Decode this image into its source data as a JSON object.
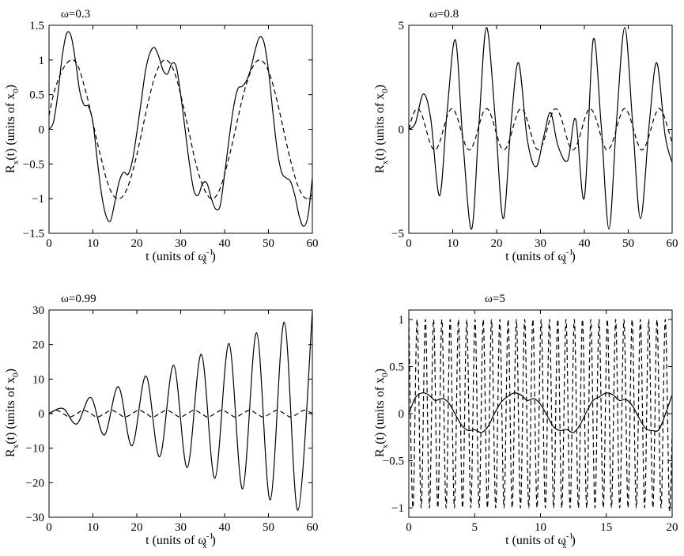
{
  "chart_data": [
    {
      "type": "line",
      "title": "ω=0.3",
      "xlabel": "t (units of ω_x^{-1})",
      "ylabel": "R_x(t) (units of x_0)",
      "xlim": [
        0,
        60
      ],
      "ylim": [
        -1.5,
        1.5
      ],
      "xticks": [
        0,
        10,
        20,
        30,
        40,
        50,
        60
      ],
      "yticks": [
        -1.5,
        -1,
        -0.5,
        0,
        0.5,
        1,
        1.5
      ],
      "xtick_labels": [
        "0",
        "10",
        "20",
        "30",
        "40",
        "50",
        "60"
      ],
      "ytick_labels": [
        "−1.5",
        "−1",
        "−0.5",
        "0",
        "0.5",
        "1",
        "1.5"
      ],
      "series": [
        {
          "style": "solid",
          "x": [
            0,
            1,
            2,
            3,
            4,
            5,
            6,
            7,
            8,
            9,
            10,
            11,
            12,
            13,
            14,
            15,
            16,
            17,
            18,
            19,
            20,
            21,
            22,
            23,
            24,
            25,
            26,
            27,
            28,
            29,
            30,
            31,
            32,
            33,
            34,
            35,
            36,
            37,
            38,
            39,
            40,
            41,
            42,
            43,
            44,
            45,
            46,
            47,
            48,
            49,
            50,
            51,
            52,
            53,
            54,
            55,
            56,
            57,
            58,
            59,
            60
          ],
          "y": [
            0,
            0.1,
            0.5,
            1.05,
            1.38,
            1.35,
            1.0,
            0.55,
            0.35,
            0.33,
            0.1,
            -0.45,
            -0.95,
            -1.25,
            -1.32,
            -1.05,
            -0.75,
            -0.62,
            -0.65,
            -0.45,
            -0.05,
            0.4,
            0.85,
            1.1,
            1.18,
            1.05,
            0.85,
            0.8,
            0.95,
            0.9,
            0.5,
            0.0,
            -0.5,
            -0.88,
            -0.95,
            -0.78,
            -0.78,
            -1.0,
            -1.15,
            -1.1,
            -0.65,
            -0.15,
            0.3,
            0.58,
            0.62,
            0.7,
            0.88,
            1.15,
            1.33,
            1.25,
            0.85,
            0.25,
            -0.3,
            -0.62,
            -0.7,
            -0.75,
            -0.95,
            -1.25,
            -1.4,
            -1.25,
            -0.7
          ]
        },
        {
          "style": "dashed",
          "x": [
            0,
            1,
            2,
            3,
            4,
            5,
            6,
            7,
            8,
            9,
            10,
            11,
            12,
            13,
            14,
            15,
            16,
            17,
            18,
            19,
            20,
            21,
            22,
            23,
            24,
            25,
            26,
            27,
            28,
            29,
            30,
            31,
            32,
            33,
            34,
            35,
            36,
            37,
            38,
            39,
            40,
            41,
            42,
            43,
            44,
            45,
            46,
            47,
            48,
            49,
            50,
            51,
            52,
            53,
            54,
            55,
            56,
            57,
            58,
            59,
            60
          ],
          "y": [
            0.2,
            0.5,
            0.7,
            0.85,
            0.95,
            1.0,
            0.98,
            0.85,
            0.63,
            0.39,
            0.1,
            -0.19,
            -0.45,
            -0.7,
            -0.88,
            -0.98,
            -1.0,
            -0.95,
            -0.82,
            -0.62,
            -0.37,
            -0.08,
            0.22,
            0.5,
            0.74,
            0.9,
            0.99,
            0.99,
            0.91,
            0.74,
            0.5,
            0.22,
            -0.07,
            -0.37,
            -0.62,
            -0.81,
            -0.94,
            -1.0,
            -0.97,
            -0.85,
            -0.65,
            -0.41,
            -0.14,
            0.15,
            0.43,
            0.66,
            0.84,
            0.96,
            1.0,
            0.96,
            0.84,
            0.65,
            0.4,
            0.12,
            -0.17,
            -0.44,
            -0.68,
            -0.86,
            -0.97,
            -1.0,
            -0.94
          ]
        }
      ]
    },
    {
      "type": "line",
      "title": "ω=0.8",
      "xlabel": "t (units of ω_x^{-1})",
      "ylabel": "R_x(t) (units of x_0)",
      "xlim": [
        0,
        60
      ],
      "ylim": [
        -5,
        5
      ],
      "xticks": [
        0,
        10,
        20,
        30,
        40,
        50,
        60
      ],
      "yticks": [
        -5,
        0,
        5
      ],
      "xtick_labels": [
        "0",
        "10",
        "20",
        "30",
        "40",
        "50",
        "60"
      ],
      "ytick_labels": [
        "−5",
        "0",
        "5"
      ],
      "series": [
        {
          "style": "solid",
          "x": [
            0,
            1.5,
            3.3,
            5,
            7,
            8.7,
            10.6,
            12.3,
            14.3,
            16,
            17.7,
            19.7,
            21.5,
            23.3,
            25,
            27,
            29,
            30.8,
            32.3,
            34,
            36.2,
            38,
            40,
            42,
            43.8,
            45.6,
            47.3,
            49.2,
            51,
            52.8,
            54.8,
            56.5,
            58.4,
            60
          ],
          "y": [
            0,
            0.3,
            1.7,
            0.5,
            -3.2,
            0.8,
            4.3,
            -0.5,
            -4.8,
            0.3,
            4.9,
            0.5,
            -4.3,
            0.3,
            3.2,
            -0.5,
            -1.8,
            -0.3,
            0.8,
            -0.8,
            -1.5,
            0.5,
            -3.3,
            4.3,
            0.3,
            -4.8,
            0.3,
            4.9,
            0.3,
            -4.3,
            0.3,
            3.2,
            -0.3,
            -1.6
          ]
        },
        {
          "style": "dashed",
          "x": [
            0,
            1,
            2,
            3,
            4,
            5,
            6,
            7,
            8,
            9,
            10,
            11,
            12,
            13,
            14,
            15,
            16,
            17,
            18,
            19,
            20,
            21,
            22,
            23,
            24,
            25,
            26,
            27,
            28,
            29,
            30,
            31,
            32,
            33,
            34,
            35,
            36,
            37,
            38,
            39,
            40,
            41,
            42,
            43,
            44,
            45,
            46,
            47,
            48,
            49,
            50,
            51,
            52,
            53,
            54,
            55,
            56,
            57,
            58,
            59,
            60
          ],
          "y": [
            0,
            0.72,
            1.0,
            0.68,
            -0.05,
            -0.75,
            -1.0,
            -0.64,
            0.1,
            0.78,
            0.99,
            0.6,
            -0.14,
            -0.81,
            -0.98,
            -0.56,
            0.19,
            0.84,
            0.97,
            0.52,
            -0.24,
            -0.86,
            -0.95,
            -0.48,
            0.28,
            0.89,
            0.94,
            0.44,
            -0.33,
            -0.91,
            -0.92,
            -0.39,
            0.37,
            0.93,
            0.9,
            0.35,
            -0.41,
            -0.95,
            -0.88,
            -0.3,
            0.46,
            0.97,
            0.85,
            0.26,
            -0.5,
            -0.98,
            -0.82,
            -0.21,
            0.54,
            0.99,
            0.79,
            0.16,
            -0.58,
            -0.99,
            -0.76,
            -0.11,
            0.62,
            1.0,
            0.73,
            0.07,
            -0.65
          ]
        }
      ]
    },
    {
      "type": "line",
      "title": "ω=0.99",
      "xlabel": "t (units of ω_x^{-1})",
      "ylabel": "R_x(t) (units of x_0)",
      "xlim": [
        0,
        60
      ],
      "ylim": [
        -30,
        30
      ],
      "xticks": [
        0,
        10,
        20,
        30,
        40,
        50,
        60
      ],
      "yticks": [
        -30,
        -20,
        -10,
        0,
        10,
        20,
        30
      ],
      "xtick_labels": [
        "0",
        "10",
        "20",
        "30",
        "40",
        "50",
        "60"
      ],
      "ytick_labels": [
        "−30",
        "−20",
        "−10",
        "0",
        "10",
        "20",
        "30"
      ],
      "series": [
        {
          "style": "solid",
          "x": [
            0,
            3.2,
            6.3,
            9.5,
            12.6,
            15.8,
            18.9,
            22.1,
            25.2,
            28.4,
            31.5,
            34.7,
            37.8,
            41.0,
            44.1,
            47.3,
            50.4,
            53.6,
            56.7,
            60
          ],
          "y": [
            0,
            1.5,
            -3,
            4.7,
            -6.2,
            7.8,
            -9.3,
            10.9,
            -12.5,
            14.0,
            -15.6,
            17.2,
            -18.7,
            20.3,
            -21.8,
            23.4,
            -25.0,
            26.5,
            -28.0,
            29.5
          ]
        },
        {
          "style": "dashed",
          "x": [
            0,
            1.6,
            3.2,
            4.7,
            6.3,
            7.9,
            9.5,
            11.0,
            12.6,
            14.2,
            15.8,
            17.3,
            18.9,
            20.5,
            22.1,
            23.6,
            25.2,
            26.8,
            28.4,
            29.9,
            31.5,
            33.1,
            34.7,
            36.2,
            37.8,
            39.4,
            41.0,
            42.5,
            44.1,
            45.7,
            47.3,
            48.8,
            50.4,
            52.0,
            53.6,
            55.1,
            56.7,
            58.3,
            60
          ],
          "y": [
            0,
            1,
            0,
            -1,
            0,
            1,
            0,
            -1,
            0,
            1,
            0,
            -1,
            0,
            1,
            0,
            -1,
            0,
            1,
            0,
            -1,
            0,
            1,
            0,
            -1,
            0,
            1,
            0,
            -1,
            0,
            1,
            0,
            -1,
            0,
            1,
            0,
            -1,
            0,
            1,
            0
          ]
        }
      ]
    },
    {
      "type": "line",
      "title": "ω=5",
      "xlabel": "t (units of ω_x^{-1})",
      "ylabel": "R_x(t) (units of x_0)",
      "xlim": [
        0,
        20
      ],
      "ylim": [
        -1.1,
        1.1
      ],
      "xticks": [
        0,
        5,
        10,
        15,
        20
      ],
      "yticks": [
        -1,
        -0.5,
        0,
        0.5,
        1
      ],
      "xtick_labels": [
        "0",
        "5",
        "10",
        "15",
        "20"
      ],
      "ytick_labels": [
        "−1",
        "−0.5",
        "0",
        "0.5",
        "1"
      ],
      "series": [
        {
          "style": "solid",
          "x": [
            0,
            0.5,
            1.0,
            1.5,
            2.0,
            2.5,
            3.0,
            3.5,
            4.0,
            4.5,
            5.0,
            5.5,
            6.0,
            6.5,
            7.0,
            7.5,
            8.0,
            8.5,
            9.0,
            9.5,
            10.0,
            10.5,
            11.0,
            11.5,
            12.0,
            12.5,
            13.0,
            13.5,
            14.0,
            14.5,
            15.0,
            15.5,
            16.0,
            16.5,
            17.0,
            17.5,
            18.0,
            18.5,
            19.0,
            19.5,
            20.0
          ],
          "y": [
            0,
            0.17,
            0.22,
            0.2,
            0.14,
            0.16,
            0.12,
            0.0,
            -0.12,
            -0.18,
            -0.17,
            -0.2,
            -0.14,
            0.0,
            0.12,
            0.18,
            0.22,
            0.2,
            0.14,
            0.16,
            0.1,
            -0.02,
            -0.14,
            -0.18,
            -0.17,
            -0.2,
            -0.12,
            0.02,
            0.14,
            0.18,
            0.22,
            0.2,
            0.14,
            0.15,
            0.08,
            -0.05,
            -0.16,
            -0.18,
            -0.17,
            0.0,
            0.2
          ]
        },
        {
          "style": "dashed",
          "x": [
            0,
            0.31,
            0.63,
            0.94,
            1.26,
            1.57,
            1.88,
            2.2,
            2.51,
            2.83,
            3.14,
            3.46,
            3.77,
            4.08,
            4.4,
            4.71,
            5.03,
            5.34,
            5.65,
            5.97,
            6.28,
            6.6,
            6.91,
            7.23,
            7.54,
            7.85,
            8.17,
            8.48,
            8.8,
            9.11,
            9.42,
            9.74,
            10.05,
            10.37,
            10.68,
            11.0,
            11.31,
            11.62,
            11.94,
            12.25,
            12.57,
            12.88,
            13.19,
            13.51,
            13.82,
            14.14,
            14.45,
            14.77,
            15.08,
            15.39,
            15.71,
            16.02,
            16.34,
            16.65,
            16.96,
            17.28,
            17.59,
            17.91,
            18.22,
            18.54,
            18.85,
            19.16,
            19.48,
            19.79,
            20.0
          ],
          "y": [
            1,
            -1,
            1,
            -1,
            1,
            -1,
            1,
            -1,
            1,
            -1,
            1,
            -1,
            1,
            -1,
            1,
            -1,
            1,
            -1,
            1,
            -1,
            1,
            -1,
            1,
            -1,
            1,
            -1,
            1,
            -1,
            1,
            -1,
            1,
            -1,
            1,
            -1,
            1,
            -1,
            1,
            -1,
            1,
            -1,
            1,
            -1,
            1,
            -1,
            1,
            -1,
            1,
            -1,
            1,
            -1,
            1,
            -1,
            1,
            -1,
            1,
            -1,
            1,
            -1,
            1,
            -1,
            1,
            -1,
            1,
            -1,
            -0.2
          ]
        }
      ]
    }
  ]
}
